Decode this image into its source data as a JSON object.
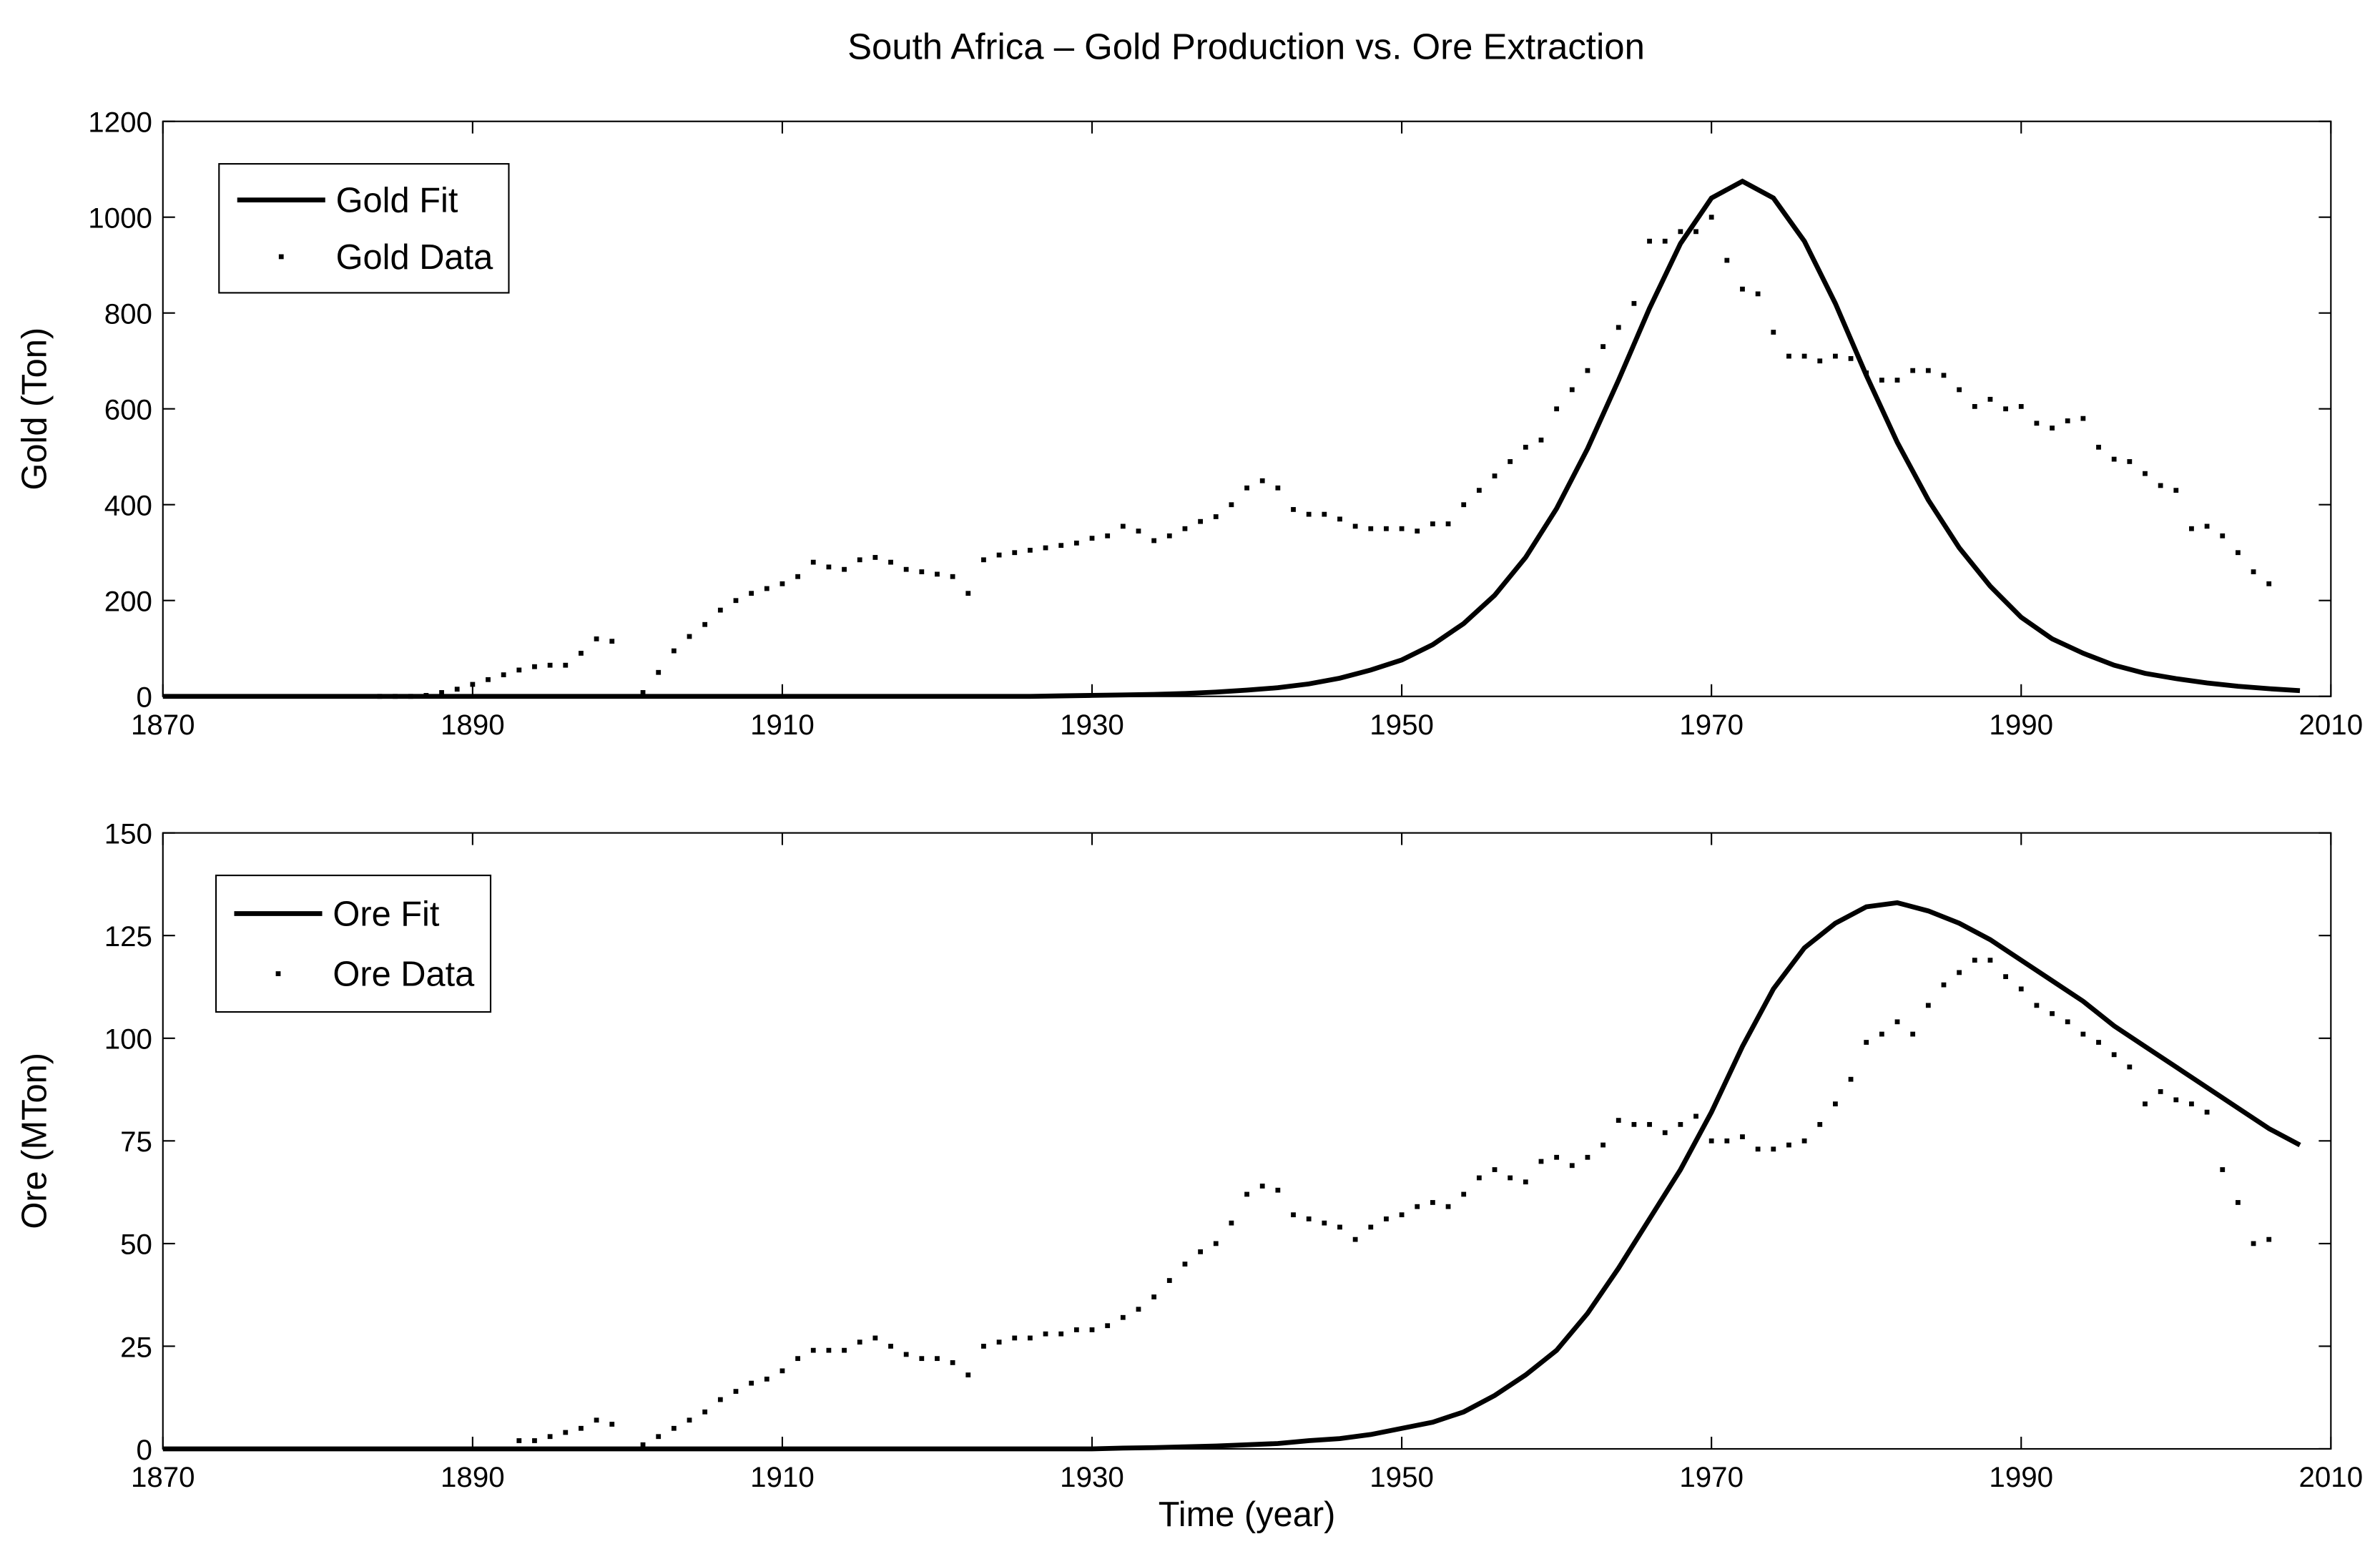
{
  "title": "South Africa – Gold Production vs. Ore Extraction",
  "chart_data": [
    {
      "type": "line",
      "ylabel": "Gold (Ton)",
      "xlim": [
        1870,
        2010
      ],
      "xticks": [
        1870,
        1890,
        1910,
        1930,
        1950,
        1970,
        1990,
        2010
      ],
      "ylim": [
        0,
        1200
      ],
      "yticks": [
        0,
        200,
        400,
        600,
        800,
        1000,
        1200
      ],
      "legend": "upper left",
      "series": [
        {
          "name": "Gold Fit",
          "color": "#000000",
          "style": "line",
          "x": [
            1870,
            1872,
            1874,
            1876,
            1878,
            1880,
            1882,
            1884,
            1886,
            1888,
            1890,
            1892,
            1894,
            1896,
            1898,
            1900,
            1902,
            1904,
            1906,
            1908,
            1910,
            1912,
            1914,
            1916,
            1918,
            1920,
            1922,
            1924,
            1926,
            1928,
            1930,
            1932,
            1934,
            1936,
            1938,
            1940,
            1942,
            1944,
            1946,
            1948,
            1950,
            1952,
            1954,
            1956,
            1958,
            1960,
            1962,
            1964,
            1966,
            1968,
            1970,
            1972,
            1974,
            1976,
            1978,
            1980,
            1982,
            1984,
            1986,
            1988,
            1990,
            1992,
            1994,
            1996,
            1998,
            2000,
            2002,
            2004,
            2006,
            2008
          ],
          "values": [
            0,
            0,
            0,
            0,
            0,
            0,
            0,
            0,
            0,
            0,
            0,
            0,
            0,
            0,
            0,
            0,
            0,
            0,
            0,
            0,
            0,
            0,
            0,
            0,
            0,
            0,
            0,
            0,
            0,
            1,
            2,
            3,
            4,
            6,
            9,
            13,
            18,
            26,
            38,
            55,
            76,
            108,
            152,
            211,
            290,
            392,
            517,
            660,
            810,
            945,
            1040,
            1075,
            1040,
            950,
            820,
            670,
            530,
            410,
            310,
            230,
            165,
            120,
            90,
            65,
            48,
            37,
            28,
            21,
            16,
            12
          ]
        },
        {
          "name": "Gold Data",
          "color": "#000000",
          "style": "dots",
          "x": [
            1884,
            1885,
            1886,
            1887,
            1888,
            1889,
            1890,
            1891,
            1892,
            1893,
            1894,
            1895,
            1896,
            1897,
            1898,
            1899,
            1901,
            1902,
            1903,
            1904,
            1905,
            1906,
            1907,
            1908,
            1909,
            1910,
            1911,
            1912,
            1913,
            1914,
            1915,
            1916,
            1917,
            1918,
            1919,
            1920,
            1921,
            1922,
            1923,
            1924,
            1925,
            1926,
            1927,
            1928,
            1929,
            1930,
            1931,
            1932,
            1933,
            1934,
            1935,
            1936,
            1937,
            1938,
            1939,
            1940,
            1941,
            1942,
            1943,
            1944,
            1945,
            1946,
            1947,
            1948,
            1949,
            1950,
            1951,
            1952,
            1953,
            1954,
            1955,
            1956,
            1957,
            1958,
            1959,
            1960,
            1961,
            1962,
            1963,
            1964,
            1965,
            1966,
            1967,
            1968,
            1969,
            1970,
            1971,
            1972,
            1973,
            1974,
            1975,
            1976,
            1977,
            1978,
            1979,
            1980,
            1981,
            1982,
            1983,
            1984,
            1985,
            1986,
            1987,
            1988,
            1989,
            1990,
            1991,
            1992,
            1993,
            1994,
            1995,
            1996,
            1997,
            1998,
            1999,
            2000,
            2001,
            2002,
            2003,
            2004,
            2005,
            2006
          ],
          "values": [
            0,
            0,
            0,
            2,
            8,
            15,
            25,
            35,
            45,
            55,
            62,
            65,
            65,
            90,
            120,
            115,
            8,
            50,
            95,
            125,
            150,
            180,
            200,
            215,
            225,
            235,
            250,
            280,
            270,
            265,
            285,
            290,
            280,
            265,
            260,
            255,
            250,
            215,
            285,
            295,
            300,
            305,
            310,
            315,
            320,
            330,
            335,
            355,
            345,
            325,
            335,
            350,
            365,
            375,
            400,
            435,
            450,
            435,
            390,
            380,
            380,
            370,
            355,
            350,
            350,
            350,
            345,
            360,
            360,
            400,
            430,
            460,
            490,
            520,
            535,
            600,
            640,
            680,
            730,
            770,
            820,
            950,
            950,
            970,
            970,
            1000,
            910,
            850,
            840,
            760,
            710,
            710,
            700,
            710,
            705,
            675,
            660,
            660,
            680,
            680,
            670,
            640,
            605,
            620,
            600,
            605,
            570,
            560,
            575,
            580,
            520,
            495,
            490,
            465,
            440,
            430,
            350,
            355,
            335,
            300,
            260,
            235
          ]
        }
      ]
    },
    {
      "type": "line",
      "ylabel": "Ore (MTon)",
      "xlabel": "Time (year)",
      "xlim": [
        1870,
        2010
      ],
      "xticks": [
        1870,
        1890,
        1910,
        1930,
        1950,
        1970,
        1990,
        2010
      ],
      "ylim": [
        0,
        150
      ],
      "yticks": [
        0,
        25,
        50,
        75,
        100,
        125,
        150
      ],
      "legend": "upper left",
      "series": [
        {
          "name": "Ore Fit",
          "color": "#000000",
          "style": "line",
          "x": [
            1870,
            1872,
            1874,
            1876,
            1878,
            1880,
            1882,
            1884,
            1886,
            1888,
            1890,
            1892,
            1894,
            1896,
            1898,
            1900,
            1902,
            1904,
            1906,
            1908,
            1910,
            1912,
            1914,
            1916,
            1918,
            1920,
            1922,
            1924,
            1926,
            1928,
            1930,
            1932,
            1934,
            1936,
            1938,
            1940,
            1942,
            1944,
            1946,
            1948,
            1950,
            1952,
            1954,
            1956,
            1958,
            1960,
            1962,
            1964,
            1966,
            1968,
            1970,
            1972,
            1974,
            1976,
            1978,
            1980,
            1982,
            1984,
            1986,
            1988,
            1990,
            1992,
            1994,
            1996,
            1998,
            2000,
            2002,
            2004,
            2006,
            2008
          ],
          "values": [
            0,
            0,
            0,
            0,
            0,
            0,
            0,
            0,
            0,
            0,
            0,
            0,
            0,
            0,
            0,
            0,
            0,
            0,
            0,
            0,
            0,
            0,
            0,
            0,
            0,
            0,
            0,
            0,
            0,
            0,
            0,
            0.2,
            0.3,
            0.5,
            0.7,
            1,
            1.3,
            2,
            2.5,
            3.5,
            5,
            6.5,
            9,
            13,
            18,
            24,
            33,
            44,
            56,
            68,
            82,
            98,
            112,
            122,
            128,
            132,
            133,
            131,
            128,
            124,
            119,
            114,
            109,
            103,
            98,
            93,
            88,
            83,
            78,
            74
          ]
        },
        {
          "name": "Ore Data",
          "color": "#000000",
          "style": "dots",
          "x": [
            1893,
            1894,
            1895,
            1896,
            1897,
            1898,
            1899,
            1901,
            1902,
            1903,
            1904,
            1905,
            1906,
            1907,
            1908,
            1909,
            1910,
            1911,
            1912,
            1913,
            1914,
            1915,
            1916,
            1917,
            1918,
            1919,
            1920,
            1921,
            1922,
            1923,
            1924,
            1925,
            1926,
            1927,
            1928,
            1929,
            1930,
            1931,
            1932,
            1933,
            1934,
            1935,
            1936,
            1937,
            1938,
            1939,
            1940,
            1941,
            1942,
            1943,
            1944,
            1945,
            1946,
            1947,
            1948,
            1949,
            1950,
            1951,
            1952,
            1953,
            1954,
            1955,
            1956,
            1957,
            1958,
            1959,
            1960,
            1961,
            1962,
            1963,
            1964,
            1965,
            1966,
            1967,
            1968,
            1969,
            1970,
            1971,
            1972,
            1973,
            1974,
            1975,
            1976,
            1977,
            1978,
            1979,
            1980,
            1981,
            1982,
            1983,
            1984,
            1985,
            1986,
            1987,
            1988,
            1989,
            1990,
            1991,
            1992,
            1993,
            1994,
            1995,
            1996,
            1997,
            1998,
            1999,
            2000,
            2001,
            2002,
            2003,
            2004,
            2005,
            2006
          ],
          "values": [
            2,
            2,
            3,
            4,
            5,
            7,
            6,
            1,
            3,
            5,
            7,
            9,
            12,
            14,
            16,
            17,
            19,
            22,
            24,
            24,
            24,
            26,
            27,
            25,
            23,
            22,
            22,
            21,
            18,
            25,
            26,
            27,
            27,
            28,
            28,
            29,
            29,
            30,
            32,
            34,
            37,
            41,
            45,
            48,
            50,
            55,
            62,
            64,
            63,
            57,
            56,
            55,
            54,
            51,
            54,
            56,
            57,
            59,
            60,
            59,
            62,
            66,
            68,
            66,
            65,
            70,
            71,
            69,
            71,
            74,
            80,
            79,
            79,
            77,
            79,
            81,
            75,
            75,
            76,
            73,
            73,
            74,
            75,
            79,
            84,
            90,
            99,
            101,
            104,
            101,
            108,
            113,
            116,
            119,
            119,
            115,
            112,
            108,
            106,
            104,
            101,
            99,
            96,
            93,
            84,
            87,
            85,
            84,
            82,
            68,
            60,
            50,
            51
          ]
        }
      ]
    }
  ]
}
